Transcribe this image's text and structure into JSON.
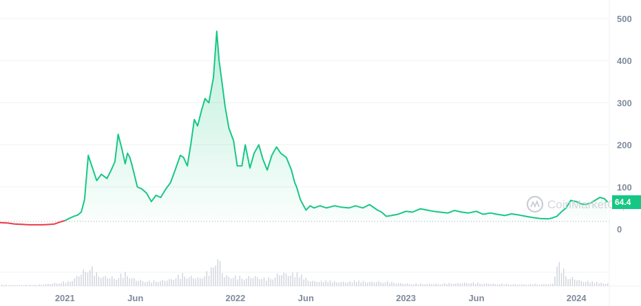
{
  "chart_data": {
    "type": "area",
    "watermark": "CoinMarketCap",
    "current_price_label": "64.4",
    "colors": {
      "up_line": "#16c784",
      "down_line": "#ea3943",
      "area_top": "#16c784",
      "volume": "#cfd3dc",
      "grid": "#eff2f5",
      "baseline_dots": "#a1a7bb",
      "axis_text": "#808a9d"
    },
    "ylim": [
      0,
      500
    ],
    "y_ticks": [
      0,
      100,
      200,
      300,
      400,
      500
    ],
    "x_ticks": [
      {
        "label": "2021",
        "date": "2021-01-01"
      },
      {
        "label": "Jun",
        "date": "2021-06-01"
      },
      {
        "label": "2022",
        "date": "2022-01-01"
      },
      {
        "label": "Jun",
        "date": "2022-06-01"
      },
      {
        "label": "2023",
        "date": "2023-01-01"
      },
      {
        "label": "Jun",
        "date": "2023-06-01"
      },
      {
        "label": "2024",
        "date": "2024-01-01"
      }
    ],
    "xlim": [
      "2020-08-15",
      "2024-03-10"
    ],
    "baseline_value": 18,
    "series": [
      {
        "x": [
          "2020-08-15",
          "2020-09-01",
          "2020-09-15",
          "2020-10-01",
          "2020-10-15",
          "2020-11-01",
          "2020-11-15",
          "2020-12-01",
          "2020-12-10",
          "2020-12-20",
          "2021-01-01",
          "2021-01-10",
          "2021-01-20",
          "2021-01-28",
          "2021-02-05",
          "2021-02-12",
          "2021-02-20",
          "2021-03-01",
          "2021-03-10",
          "2021-03-20",
          "2021-04-01",
          "2021-04-10",
          "2021-04-18",
          "2021-04-25",
          "2021-05-03",
          "2021-05-10",
          "2021-05-15",
          "2021-05-20",
          "2021-05-25",
          "2021-06-05",
          "2021-06-15",
          "2021-06-25",
          "2021-07-05",
          "2021-07-15",
          "2021-07-25",
          "2021-08-05",
          "2021-08-15",
          "2021-08-25",
          "2021-09-05",
          "2021-09-12",
          "2021-09-20",
          "2021-09-28",
          "2021-10-05",
          "2021-10-12",
          "2021-10-20",
          "2021-10-28",
          "2021-11-05",
          "2021-11-10",
          "2021-11-15",
          "2021-11-22",
          "2021-11-27",
          "2021-12-03",
          "2021-12-10",
          "2021-12-18",
          "2021-12-28",
          "2022-01-05",
          "2022-01-15",
          "2022-01-22",
          "2022-02-01",
          "2022-02-10",
          "2022-02-20",
          "2022-03-01",
          "2022-03-10",
          "2022-03-20",
          "2022-03-30",
          "2022-04-08",
          "2022-04-20",
          "2022-05-01",
          "2022-05-08",
          "2022-05-12",
          "2022-05-20",
          "2022-06-01",
          "2022-06-10",
          "2022-06-18",
          "2022-07-01",
          "2022-07-15",
          "2022-08-01",
          "2022-08-15",
          "2022-09-01",
          "2022-09-15",
          "2022-10-01",
          "2022-10-15",
          "2022-11-01",
          "2022-11-10",
          "2022-11-20",
          "2022-12-01",
          "2022-12-15",
          "2023-01-01",
          "2023-01-15",
          "2023-02-01",
          "2023-02-15",
          "2023-03-01",
          "2023-03-15",
          "2023-04-01",
          "2023-04-15",
          "2023-05-01",
          "2023-05-15",
          "2023-06-01",
          "2023-06-15",
          "2023-07-01",
          "2023-07-15",
          "2023-08-01",
          "2023-08-15",
          "2023-09-01",
          "2023-09-15",
          "2023-10-01",
          "2023-10-15",
          "2023-11-01",
          "2023-11-10",
          "2023-11-20",
          "2023-12-01",
          "2023-12-10",
          "2023-12-20",
          "2024-01-01",
          "2024-01-10",
          "2024-01-20",
          "2024-02-01",
          "2024-02-10",
          "2024-02-20",
          "2024-03-01",
          "2024-03-08"
        ],
        "values": [
          15,
          14,
          12,
          11,
          10,
          10,
          10,
          11,
          12,
          16,
          20,
          25,
          30,
          33,
          40,
          70,
          175,
          145,
          115,
          130,
          120,
          140,
          160,
          225,
          190,
          155,
          180,
          170,
          150,
          100,
          95,
          85,
          65,
          80,
          75,
          95,
          110,
          140,
          175,
          170,
          150,
          205,
          260,
          245,
          280,
          310,
          300,
          330,
          360,
          470,
          400,
          350,
          290,
          240,
          210,
          150,
          150,
          200,
          145,
          180,
          200,
          165,
          140,
          175,
          195,
          180,
          170,
          140,
          110,
          100,
          70,
          45,
          55,
          50,
          55,
          50,
          55,
          52,
          50,
          55,
          50,
          58,
          45,
          40,
          30,
          32,
          35,
          42,
          40,
          48,
          45,
          42,
          40,
          38,
          44,
          40,
          38,
          42,
          35,
          38,
          35,
          32,
          36,
          33,
          30,
          27,
          25,
          24,
          26,
          30,
          42,
          50,
          68,
          65,
          60,
          58,
          62,
          68,
          75,
          72,
          64
        ]
      }
    ],
    "volume": {
      "x": [
        "2020-09-01",
        "2020-11-01",
        "2021-01-10",
        "2021-02-20",
        "2021-03-10",
        "2021-04-20",
        "2021-05-10",
        "2021-06-01",
        "2021-07-01",
        "2021-08-10",
        "2021-09-10",
        "2021-10-15",
        "2021-11-10",
        "2021-11-22",
        "2021-12-05",
        "2022-01-10",
        "2022-02-10",
        "2022-03-10",
        "2022-04-10",
        "2022-05-10",
        "2022-06-10",
        "2022-07-10",
        "2022-09-01",
        "2022-11-10",
        "2023-01-10",
        "2023-03-10",
        "2023-05-10",
        "2023-07-10",
        "2023-09-10",
        "2023-11-10",
        "2023-11-20",
        "2023-12-10",
        "2024-01-10",
        "2024-02-10",
        "2024-03-05"
      ],
      "values": [
        2,
        2,
        8,
        35,
        20,
        15,
        22,
        12,
        8,
        12,
        20,
        15,
        28,
        60,
        20,
        15,
        18,
        12,
        25,
        20,
        10,
        8,
        8,
        8,
        4,
        4,
        6,
        4,
        3,
        4,
        42,
        18,
        10,
        6,
        5
      ]
    }
  }
}
